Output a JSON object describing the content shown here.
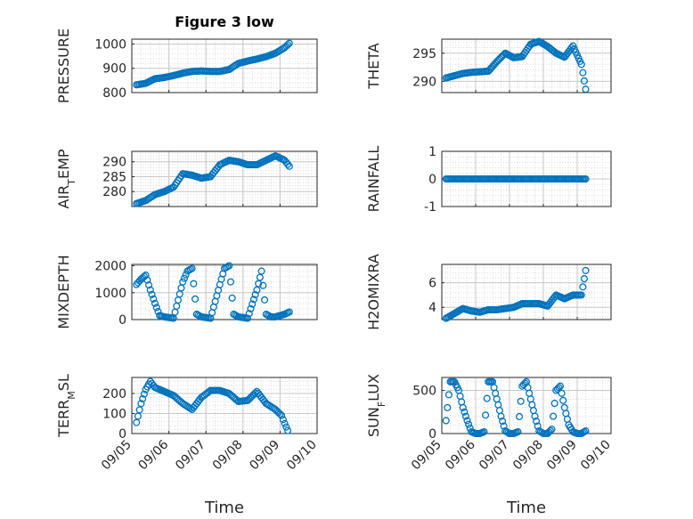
{
  "figure_title": "Figure 3 low",
  "colors": {
    "marker": "#0072BD",
    "grid_minor": "#dcdcdc",
    "grid_major": "#c8c8c8",
    "axis": "#262626"
  },
  "x_tick_labels": [
    "09/05",
    "09/06",
    "09/07",
    "09/08",
    "09/09",
    "09/10"
  ],
  "chart_data": [
    {
      "type": "scatter",
      "id": "pressure",
      "title": "Figure 3 low",
      "ylabel": "PRESSURE",
      "ylabel_sub": "",
      "ylabel_rest": "",
      "xlabel": "",
      "grid": true,
      "xlim": [
        "09/05",
        "09/10"
      ],
      "ylim": [
        800,
        1020
      ],
      "yticks": [
        800,
        900,
        1000
      ],
      "ytick_labels": [
        "800",
        "900",
        "1000"
      ],
      "x_tick_labels": [],
      "series": [
        {
          "x": [
            "09/05 03:00",
            "09/05 09:00",
            "09/05 15:00",
            "09/05 21:00",
            "09/06 03:00",
            "09/06 09:00",
            "09/06 15:00",
            "09/06 21:00",
            "09/07 03:00",
            "09/07 09:00",
            "09/07 15:00",
            "09/07 21:00",
            "09/08 03:00",
            "09/08 09:00",
            "09/08 15:00",
            "09/08 21:00",
            "09/09 03:00",
            "09/09 06:00"
          ],
          "y": [
            832,
            838,
            857,
            862,
            870,
            880,
            887,
            889,
            887,
            887,
            895,
            920,
            930,
            938,
            948,
            962,
            985,
            1003
          ]
        }
      ]
    },
    {
      "type": "scatter",
      "id": "theta",
      "title": "",
      "ylabel": "THETA",
      "ylabel_sub": "",
      "ylabel_rest": "",
      "xlabel": "",
      "grid": true,
      "xlim": [
        "09/05",
        "09/10"
      ],
      "ylim": [
        288,
        297.5
      ],
      "yticks": [
        290,
        295
      ],
      "ytick_labels": [
        "290",
        "295"
      ],
      "x_tick_labels": [],
      "series": [
        {
          "x": [
            "09/05 03:00",
            "09/05 09:00",
            "09/05 15:00",
            "09/05 21:00",
            "09/06 03:00",
            "09/06 09:00",
            "09/06 15:00",
            "09/06 21:00",
            "09/07 03:00",
            "09/07 09:00",
            "09/07 15:00",
            "09/07 21:00",
            "09/08 03:00",
            "09/08 09:00",
            "09/08 15:00",
            "09/08 21:00",
            "09/09 03:00",
            "09/09 06:00"
          ],
          "y": [
            290.6,
            291.0,
            291.4,
            291.6,
            291.7,
            291.8,
            293.5,
            295.0,
            294.2,
            294.4,
            296.6,
            297.1,
            296.2,
            295.0,
            294.3,
            296.3,
            293.0,
            288.6
          ]
        }
      ]
    },
    {
      "type": "scatter",
      "id": "air_temp",
      "title": "",
      "ylabel": "AIR",
      "ylabel_sub": "T",
      "ylabel_rest": "EMP",
      "xlabel": "",
      "grid": true,
      "xlim": [
        "09/05",
        "09/10"
      ],
      "ylim": [
        275,
        293.5
      ],
      "yticks": [
        280,
        285,
        290
      ],
      "ytick_labels": [
        "280",
        "285",
        "290"
      ],
      "x_tick_labels": [],
      "series": [
        {
          "x": [
            "09/05 03:00",
            "09/05 09:00",
            "09/05 15:00",
            "09/05 21:00",
            "09/06 03:00",
            "09/06 09:00",
            "09/06 15:00",
            "09/06 21:00",
            "09/07 03:00",
            "09/07 09:00",
            "09/07 15:00",
            "09/07 21:00",
            "09/08 03:00",
            "09/08 09:00",
            "09/08 15:00",
            "09/08 21:00",
            "09/09 03:00",
            "09/09 06:00"
          ],
          "y": [
            276.0,
            277.0,
            279.0,
            280.0,
            281.5,
            286.0,
            285.5,
            284.5,
            285.0,
            289.0,
            290.5,
            290.0,
            289.0,
            289.0,
            290.5,
            292.0,
            290.5,
            288.5
          ]
        }
      ]
    },
    {
      "type": "scatter",
      "id": "rainfall",
      "title": "",
      "ylabel": "RAINFALL",
      "ylabel_sub": "",
      "ylabel_rest": "",
      "xlabel": "",
      "grid": true,
      "xlim": [
        "09/05",
        "09/10"
      ],
      "ylim": [
        -1,
        1
      ],
      "yticks": [
        -1,
        0,
        1
      ],
      "ytick_labels": [
        "-1",
        "0",
        "1"
      ],
      "x_tick_labels": [],
      "series": [
        {
          "x": [
            "09/05 03:00",
            "09/05 09:00",
            "09/05 15:00",
            "09/05 21:00",
            "09/06 03:00",
            "09/06 09:00",
            "09/06 15:00",
            "09/06 21:00",
            "09/07 03:00",
            "09/07 09:00",
            "09/07 15:00",
            "09/07 21:00",
            "09/08 03:00",
            "09/08 09:00",
            "09/08 15:00",
            "09/08 21:00",
            "09/09 03:00",
            "09/09 06:00"
          ],
          "y": [
            0,
            0,
            0,
            0,
            0,
            0,
            0,
            0,
            0,
            0,
            0,
            0,
            0,
            0,
            0,
            0,
            0,
            0
          ]
        }
      ]
    },
    {
      "type": "scatter",
      "id": "mixdepth",
      "title": "",
      "ylabel": "MIXDEPTH",
      "ylabel_sub": "",
      "ylabel_rest": "",
      "xlabel": "",
      "grid": true,
      "xlim": [
        "09/05",
        "09/10"
      ],
      "ylim": [
        0,
        2050
      ],
      "yticks": [
        0,
        1000,
        2000
      ],
      "ytick_labels": [
        "0",
        "1000",
        "2000"
      ],
      "x_tick_labels": [],
      "series": [
        {
          "x": [
            "09/05 03:00",
            "09/05 06:00",
            "09/05 09:00",
            "09/05 12:00",
            "09/05 15:00",
            "09/05 18:00",
            "09/05 21:00",
            "09/06 03:00",
            "09/06 09:00",
            "09/06 12:00",
            "09/06 15:00",
            "09/06 18:00",
            "09/06 21:00",
            "09/07 03:00",
            "09/07 09:00",
            "09/07 12:00",
            "09/07 15:00",
            "09/07 18:00",
            "09/07 21:00",
            "09/08 03:00",
            "09/08 09:00",
            "09/08 12:00",
            "09/08 15:00",
            "09/08 18:00",
            "09/08 21:00",
            "09/09 03:00",
            "09/09 06:00"
          ],
          "y": [
            1300,
            1500,
            1650,
            1100,
            600,
            150,
            100,
            50,
            1400,
            1800,
            1900,
            200,
            100,
            50,
            1300,
            1900,
            2000,
            200,
            100,
            50,
            1100,
            1800,
            200,
            100,
            100,
            200,
            280
          ]
        }
      ]
    },
    {
      "type": "scatter",
      "id": "h2omixra",
      "title": "",
      "ylabel": "H2OMIXRA",
      "ylabel_sub": "",
      "ylabel_rest": "",
      "xlabel": "",
      "grid": true,
      "xlim": [
        "09/05",
        "09/10"
      ],
      "ylim": [
        3,
        7.5
      ],
      "yticks": [
        4,
        6
      ],
      "ytick_labels": [
        "4",
        "6"
      ],
      "x_tick_labels": [],
      "series": [
        {
          "x": [
            "09/05 03:00",
            "09/05 09:00",
            "09/05 15:00",
            "09/05 21:00",
            "09/06 03:00",
            "09/06 09:00",
            "09/06 15:00",
            "09/06 21:00",
            "09/07 03:00",
            "09/07 09:00",
            "09/07 15:00",
            "09/07 21:00",
            "09/08 03:00",
            "09/08 09:00",
            "09/08 15:00",
            "09/08 21:00",
            "09/09 03:00",
            "09/09 06:00"
          ],
          "y": [
            3.1,
            3.5,
            3.9,
            3.7,
            3.6,
            3.8,
            3.8,
            3.9,
            4.0,
            4.3,
            4.3,
            4.3,
            4.1,
            5.0,
            4.7,
            5.0,
            5.0,
            7.0
          ]
        }
      ]
    },
    {
      "type": "scatter",
      "id": "terr_msl",
      "title": "",
      "ylabel": "TERR",
      "ylabel_sub": "M",
      "ylabel_rest": "SL",
      "xlabel": "Time",
      "grid": true,
      "xlim": [
        "09/05",
        "09/10"
      ],
      "ylim": [
        0,
        280
      ],
      "yticks": [
        0,
        100,
        200
      ],
      "ytick_labels": [
        "0",
        "100",
        "200"
      ],
      "x_tick_labels": [
        "09/05",
        "09/06",
        "09/07",
        "09/08",
        "09/09",
        "09/10"
      ],
      "series": [
        {
          "x": [
            "09/05 03:00",
            "09/05 06:00",
            "09/05 09:00",
            "09/05 12:00",
            "09/05 15:00",
            "09/05 21:00",
            "09/06 03:00",
            "09/06 09:00",
            "09/06 15:00",
            "09/06 21:00",
            "09/07 03:00",
            "09/07 09:00",
            "09/07 15:00",
            "09/07 21:00",
            "09/08 03:00",
            "09/08 09:00",
            "09/08 15:00",
            "09/08 21:00",
            "09/09 01:00",
            "09/09 03:00",
            "09/09 05:00"
          ],
          "y": [
            55,
            150,
            220,
            260,
            230,
            210,
            190,
            150,
            120,
            180,
            215,
            215,
            200,
            160,
            165,
            210,
            150,
            120,
            90,
            50,
            15
          ]
        }
      ]
    },
    {
      "type": "scatter",
      "id": "sun_flux",
      "title": "",
      "ylabel": "SUN",
      "ylabel_sub": "F",
      "ylabel_rest": "LUX",
      "xlabel": "Time",
      "grid": true,
      "xlim": [
        "09/05",
        "09/10"
      ],
      "ylim": [
        0,
        650
      ],
      "yticks": [
        0,
        500
      ],
      "ytick_labels": [
        "0",
        "500"
      ],
      "x_tick_labels": [
        "09/05",
        "09/06",
        "09/07",
        "09/08",
        "09/09",
        "09/10"
      ],
      "series": [
        {
          "x": [
            "09/05 03:00",
            "09/05 06:00",
            "09/05 09:00",
            "09/05 12:00",
            "09/05 15:00",
            "09/05 18:00",
            "09/05 21:00",
            "09/06 00:00",
            "09/06 03:00",
            "09/06 06:00",
            "09/06 09:00",
            "09/06 12:00",
            "09/06 15:00",
            "09/06 18:00",
            "09/06 21:00",
            "09/07 00:00",
            "09/07 03:00",
            "09/07 06:00",
            "09/07 09:00",
            "09/07 12:00",
            "09/07 15:00",
            "09/07 18:00",
            "09/07 21:00",
            "09/08 00:00",
            "09/08 03:00",
            "09/08 06:00",
            "09/08 09:00",
            "09/08 12:00",
            "09/08 15:00",
            "09/08 18:00",
            "09/08 21:00",
            "09/09 00:00",
            "09/09 03:00",
            "09/09 06:00"
          ],
          "y": [
            150,
            600,
            600,
            500,
            300,
            150,
            20,
            0,
            0,
            20,
            600,
            600,
            400,
            200,
            30,
            0,
            0,
            20,
            550,
            600,
            400,
            200,
            30,
            0,
            0,
            50,
            500,
            550,
            300,
            100,
            20,
            0,
            0,
            30
          ]
        }
      ]
    }
  ]
}
